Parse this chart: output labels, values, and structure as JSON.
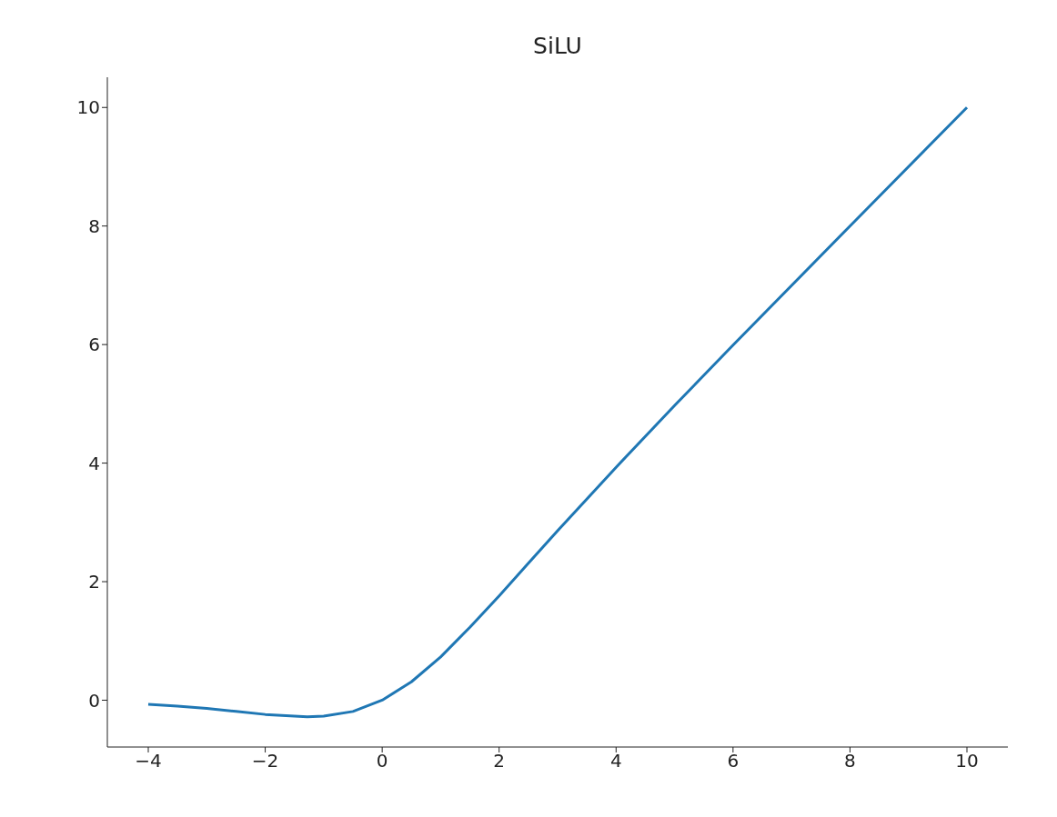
{
  "chart_data": {
    "type": "line",
    "title": "SiLU",
    "x": [
      -4,
      -3.5,
      -3,
      -2.5,
      -2,
      -1.5,
      -1.28,
      -1,
      -0.5,
      0,
      0.5,
      1,
      1.5,
      2,
      2.5,
      3,
      4,
      5,
      6,
      8,
      10
    ],
    "series": [
      {
        "color": "#1f77b4",
        "values": [
          -0.07,
          -0.1,
          -0.14,
          -0.19,
          -0.24,
          -0.27,
          -0.28,
          -0.27,
          -0.19,
          0,
          0.31,
          0.73,
          1.23,
          1.76,
          2.31,
          2.86,
          3.93,
          4.97,
          5.99,
          8,
          10
        ]
      }
    ],
    "xlim": [
      -4.7,
      10.7
    ],
    "ylim": [
      -0.79,
      10.51
    ],
    "xticks": [
      {
        "value": -4,
        "label": "−4"
      },
      {
        "value": -2,
        "label": "−2"
      },
      0,
      2,
      4,
      6,
      8,
      10
    ],
    "yticks": [
      0,
      2,
      4,
      6,
      8,
      10
    ],
    "grid": false,
    "legend": false,
    "marker": "none",
    "line_style": "solid"
  }
}
